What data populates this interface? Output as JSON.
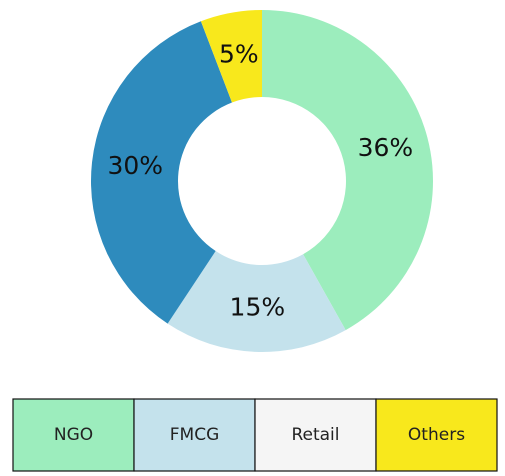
{
  "chart_data": {
    "type": "donut",
    "values": [
      36,
      15,
      30,
      5
    ],
    "value_labels": [
      "36%",
      "15%",
      "30%",
      "5%"
    ],
    "colors": [
      "#9cedbd",
      "#c4e2ec",
      "#2e8bbd",
      "#f8e81c"
    ]
  },
  "legend": {
    "items": [
      {
        "name": "NGO",
        "color": "#9cedbd"
      },
      {
        "name": "FMCG",
        "color": "#c4e2ec"
      },
      {
        "name": "Retail",
        "color": "#f5f5f5"
      },
      {
        "name": "Others",
        "color": "#f8e81c"
      }
    ]
  }
}
